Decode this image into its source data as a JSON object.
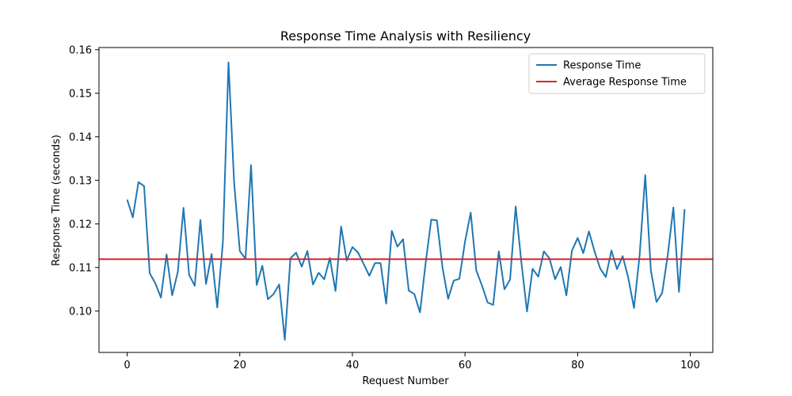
{
  "chart_data": {
    "type": "line",
    "title": "Response Time Analysis with Resiliency",
    "xlabel": "Request Number",
    "ylabel": "Response Time (seconds)",
    "xlim": [
      -5,
      104
    ],
    "ylim": [
      0.0905,
      0.1605
    ],
    "xticks": [
      0,
      20,
      40,
      60,
      80,
      100
    ],
    "yticks": [
      0.1,
      0.11,
      0.12,
      0.13,
      0.14,
      0.15,
      0.16
    ],
    "grid": false,
    "legend_position": "top-right",
    "series": [
      {
        "name": "Response Time",
        "color": "#1f77b4",
        "x": [
          0,
          1,
          2,
          3,
          4,
          5,
          6,
          7,
          8,
          9,
          10,
          11,
          12,
          13,
          14,
          15,
          16,
          17,
          18,
          19,
          20,
          21,
          22,
          23,
          24,
          25,
          26,
          27,
          28,
          29,
          30,
          31,
          32,
          33,
          34,
          35,
          36,
          37,
          38,
          39,
          40,
          41,
          42,
          43,
          44,
          45,
          46,
          47,
          48,
          49,
          50,
          51,
          52,
          53,
          54,
          55,
          56,
          57,
          58,
          59,
          60,
          61,
          62,
          63,
          64,
          65,
          66,
          67,
          68,
          69,
          70,
          71,
          72,
          73,
          74,
          75,
          76,
          77,
          78,
          79,
          80,
          81,
          82,
          83,
          84,
          85,
          86,
          87,
          88,
          89,
          90,
          91,
          92,
          93,
          94,
          95,
          96,
          97,
          98,
          99
        ],
        "y": [
          0.1256,
          0.1215,
          0.1296,
          0.1287,
          0.1087,
          0.1064,
          0.1031,
          0.113,
          0.1036,
          0.109,
          0.1237,
          0.1083,
          0.1058,
          0.1209,
          0.1062,
          0.1131,
          0.1008,
          0.1157,
          0.1571,
          0.1295,
          0.1138,
          0.112,
          0.1335,
          0.106,
          0.1104,
          0.1027,
          0.1039,
          0.1061,
          0.0934,
          0.1121,
          0.1134,
          0.1102,
          0.1138,
          0.1061,
          0.1088,
          0.1073,
          0.1122,
          0.1046,
          0.1194,
          0.1116,
          0.1147,
          0.1134,
          0.1108,
          0.1081,
          0.111,
          0.111,
          0.1017,
          0.1184,
          0.1148,
          0.1165,
          0.1047,
          0.1039,
          0.0997,
          0.111,
          0.121,
          0.1208,
          0.11,
          0.1028,
          0.107,
          0.1074,
          0.116,
          0.1226,
          0.1093,
          0.1059,
          0.102,
          0.1014,
          0.1137,
          0.105,
          0.1072,
          0.124,
          0.1112,
          0.0999,
          0.1097,
          0.1079,
          0.1137,
          0.1121,
          0.1073,
          0.1101,
          0.1036,
          0.1139,
          0.1168,
          0.1133,
          0.1183,
          0.1137,
          0.1098,
          0.1078,
          0.1139,
          0.1096,
          0.1126,
          0.1076,
          0.1007,
          0.1128,
          0.1312,
          0.1093,
          0.1021,
          0.1041,
          0.1128,
          0.1238,
          0.1044,
          0.1234
        ]
      },
      {
        "name": "Average Response Time",
        "color": "#d62728",
        "type": "hline",
        "y": 0.1119
      }
    ]
  }
}
